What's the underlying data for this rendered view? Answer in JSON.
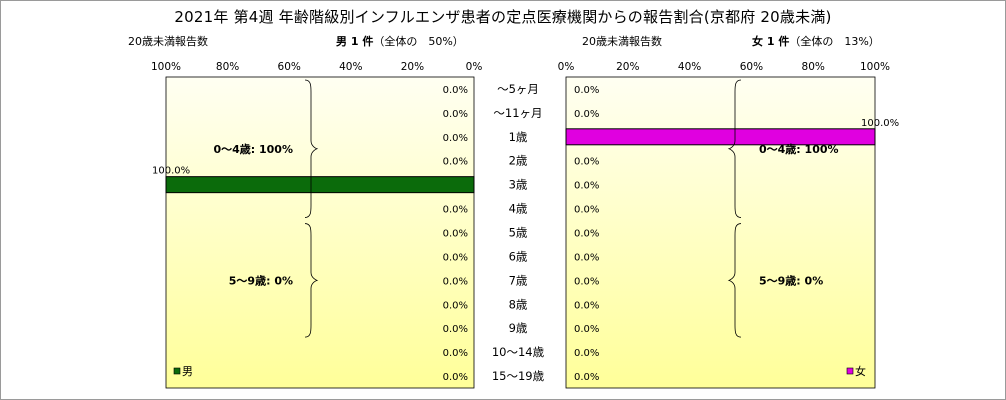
{
  "title": "2021年 第4週 年齢階級別インフルエンザ患者の定点医療機関からの報告割合(京都府 20歳未満)",
  "left_panel": {
    "header_left": "20歳未満報告数",
    "header_main": "男 1 件",
    "header_share": "（全体の　50%）",
    "legend": "男"
  },
  "right_panel": {
    "header_left": "20歳未満報告数",
    "header_main": "女 1 件",
    "header_share": "（全体の　13%）",
    "legend": "女"
  },
  "colors": {
    "male_bar": "#0b6b0b",
    "female_bar": "#e000e0",
    "plot_bg_top": "#fffff2",
    "plot_bg_bottom": "#ffff99"
  },
  "chart_data": [
    {
      "type": "bar",
      "orientation": "horizontal",
      "direction": "right-to-left",
      "series": [
        {
          "name": "男",
          "values": [
            0,
            0,
            0,
            0,
            100,
            0,
            0,
            0,
            0,
            0,
            0,
            0,
            0
          ]
        }
      ],
      "categories": [
        "～5ヶ月",
        "～11ヶ月",
        "1歳",
        "2歳",
        "3歳",
        "4歳",
        "5歳",
        "6歳",
        "7歳",
        "8歳",
        "9歳",
        "10～14歳",
        "15～19歳"
      ],
      "value_labels": [
        "0.0%",
        "0.0%",
        "0.0%",
        "0.0%",
        "100.0%",
        "0.0%",
        "0.0%",
        "0.0%",
        "0.0%",
        "0.0%",
        "0.0%",
        "0.0%",
        "0.0%"
      ],
      "xlim": [
        0,
        100
      ],
      "x_ticks": [
        "100%",
        "80%",
        "60%",
        "40%",
        "20%",
        "0%"
      ],
      "annotations": [
        {
          "text": "0～4歳: 100%",
          "from": 0,
          "to": 5
        },
        {
          "text": "5～9歳: 0%",
          "from": 6,
          "to": 10
        }
      ],
      "legend": "bottom-left"
    },
    {
      "type": "bar",
      "orientation": "horizontal",
      "direction": "left-to-right",
      "series": [
        {
          "name": "女",
          "values": [
            0,
            0,
            100,
            0,
            0,
            0,
            0,
            0,
            0,
            0,
            0,
            0,
            0
          ]
        }
      ],
      "categories": [
        "～5ヶ月",
        "～11ヶ月",
        "1歳",
        "2歳",
        "3歳",
        "4歳",
        "5歳",
        "6歳",
        "7歳",
        "8歳",
        "9歳",
        "10～14歳",
        "15～19歳"
      ],
      "value_labels": [
        "0.0%",
        "0.0%",
        "100.0%",
        "0.0%",
        "0.0%",
        "0.0%",
        "0.0%",
        "0.0%",
        "0.0%",
        "0.0%",
        "0.0%",
        "0.0%",
        "0.0%"
      ],
      "xlim": [
        0,
        100
      ],
      "x_ticks": [
        "0%",
        "20%",
        "40%",
        "60%",
        "80%",
        "100%"
      ],
      "annotations": [
        {
          "text": "0～4歳: 100%",
          "from": 0,
          "to": 5
        },
        {
          "text": "5～9歳: 0%",
          "from": 6,
          "to": 10
        }
      ],
      "legend": "bottom-right"
    }
  ]
}
